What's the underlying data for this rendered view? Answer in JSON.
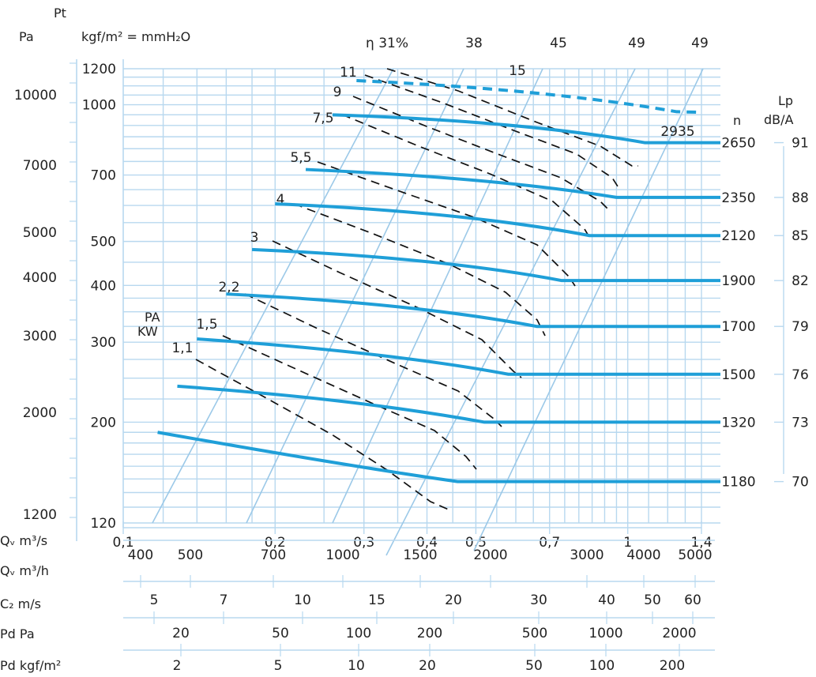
{
  "chart_data": {
    "type": "line",
    "title": "",
    "axes": {
      "y_left_pa_label": "Pa",
      "y_left_pt_label": "Pt",
      "y_left_pa_ticks": [
        "10000",
        "7000",
        "5000",
        "4000",
        "3000",
        "2000",
        "1200"
      ],
      "y_kgf_label": "kgf/m² = mmH₂O",
      "y_kgf_ticks": [
        "1200",
        "1000",
        "700",
        "500",
        "400",
        "300",
        "200",
        "120"
      ],
      "ylim_kgf": [
        120,
        1200
      ],
      "x_qv_m3s_label": "Qᵥ m³/s",
      "x_qv_m3s_ticks": [
        "0,1",
        "0,2",
        "0,3",
        "0,4",
        "0,5",
        "0,7",
        "1",
        "1,4"
      ],
      "xlim_m3s": [
        0.1,
        1.4
      ],
      "x_qv_m3h_label": "Qᵥ m³/h",
      "x_qv_m3h_ticks": [
        "400",
        "500",
        "700",
        "1000",
        "1500",
        "2000",
        "3000",
        "4000",
        "5000"
      ],
      "c2_label": "C₂ m/s",
      "c2_ticks": [
        "5",
        "7",
        "10",
        "15",
        "20",
        "30",
        "40",
        "50",
        "60"
      ],
      "pd_pa_label": "Pd Pa",
      "pd_pa_ticks": [
        "20",
        "50",
        "100",
        "200",
        "500",
        "1000",
        "2000"
      ],
      "pd_kgf_label": "Pd kgf/m²",
      "pd_kgf_ticks": [
        "2",
        "5",
        "10",
        "20",
        "50",
        "100",
        "200"
      ],
      "n_label": "n",
      "lp_label": "Lp",
      "lp_unit": "dB/A",
      "pa_kw_label_1": "PA",
      "pa_kw_label_2": "KW",
      "log_scale": true
    },
    "efficiency_lines": [
      {
        "label": "η 31%"
      },
      {
        "label": "38"
      },
      {
        "label": "45"
      },
      {
        "label": "49"
      },
      {
        "label": "49"
      }
    ],
    "series": [
      {
        "name": "1180",
        "lp": "70",
        "points": [
          [
            0.117,
            190
          ],
          [
            0.28,
            160
          ],
          [
            0.46,
            148
          ],
          [
            1.4,
            148
          ]
        ]
      },
      {
        "name": "1320",
        "lp": "73",
        "points": [
          [
            0.128,
            240
          ],
          [
            0.29,
            225
          ],
          [
            0.52,
            200
          ],
          [
            1.4,
            200
          ]
        ]
      },
      {
        "name": "1500",
        "lp": "76",
        "points": [
          [
            0.14,
            305
          ],
          [
            0.34,
            285
          ],
          [
            0.58,
            255
          ],
          [
            1.4,
            255
          ]
        ]
      },
      {
        "name": "1700",
        "lp": "79",
        "points": [
          [
            0.16,
            383
          ],
          [
            0.38,
            365
          ],
          [
            0.66,
            325
          ],
          [
            1.4,
            325
          ]
        ]
      },
      {
        "name": "1900",
        "lp": "82",
        "points": [
          [
            0.18,
            480
          ],
          [
            0.43,
            460
          ],
          [
            0.74,
            410
          ],
          [
            1.4,
            410
          ]
        ]
      },
      {
        "name": "2120",
        "lp": "85",
        "points": [
          [
            0.2,
            605
          ],
          [
            0.48,
            580
          ],
          [
            0.84,
            515
          ],
          [
            1.4,
            515
          ]
        ]
      },
      {
        "name": "2350",
        "lp": "88",
        "points": [
          [
            0.23,
            720
          ],
          [
            0.55,
            690
          ],
          [
            0.95,
            625
          ],
          [
            1.4,
            625
          ]
        ]
      },
      {
        "name": "2650",
        "lp": "91",
        "points": [
          [
            0.26,
            950
          ],
          [
            0.62,
            920
          ],
          [
            1.08,
            825
          ],
          [
            1.4,
            825
          ]
        ]
      },
      {
        "name": "2935",
        "points": [
          [
            0.29,
            1130
          ],
          [
            0.7,
            1080
          ],
          [
            1.25,
            965
          ],
          [
            1.4,
            962
          ]
        ]
      }
    ],
    "power_labels": [
      "1,1",
      "1,5",
      "2,2",
      "3",
      "4",
      "5,5",
      "7,5",
      "9",
      "11",
      "15"
    ]
  }
}
